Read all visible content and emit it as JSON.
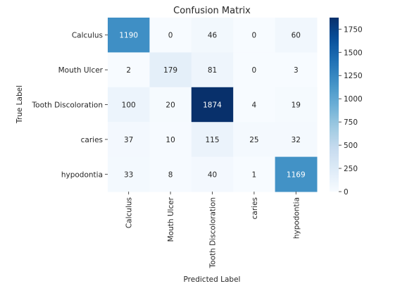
{
  "chart_data": {
    "type": "heatmap",
    "title": "Confusion Matrix",
    "xlabel": "Predicted Label",
    "ylabel": "True Label",
    "x_categories": [
      "Calculus",
      "Mouth Ulcer",
      "Tooth Discoloration",
      "caries",
      "hypodontia"
    ],
    "y_categories": [
      "Calculus",
      "Mouth Ulcer",
      "Tooth Discoloration",
      "caries",
      "hypodontia"
    ],
    "values": [
      [
        1190,
        0,
        46,
        0,
        60
      ],
      [
        2,
        179,
        81,
        0,
        3
      ],
      [
        100,
        20,
        1874,
        4,
        19
      ],
      [
        37,
        10,
        115,
        25,
        32
      ],
      [
        33,
        8,
        40,
        1,
        1169
      ]
    ],
    "colormap": "Blues",
    "color_range": [
      0,
      1874
    ],
    "colorbar_ticks": [
      0,
      250,
      500,
      750,
      1000,
      1250,
      1500,
      1750
    ],
    "grid": false,
    "legend": "colorbar-right"
  }
}
